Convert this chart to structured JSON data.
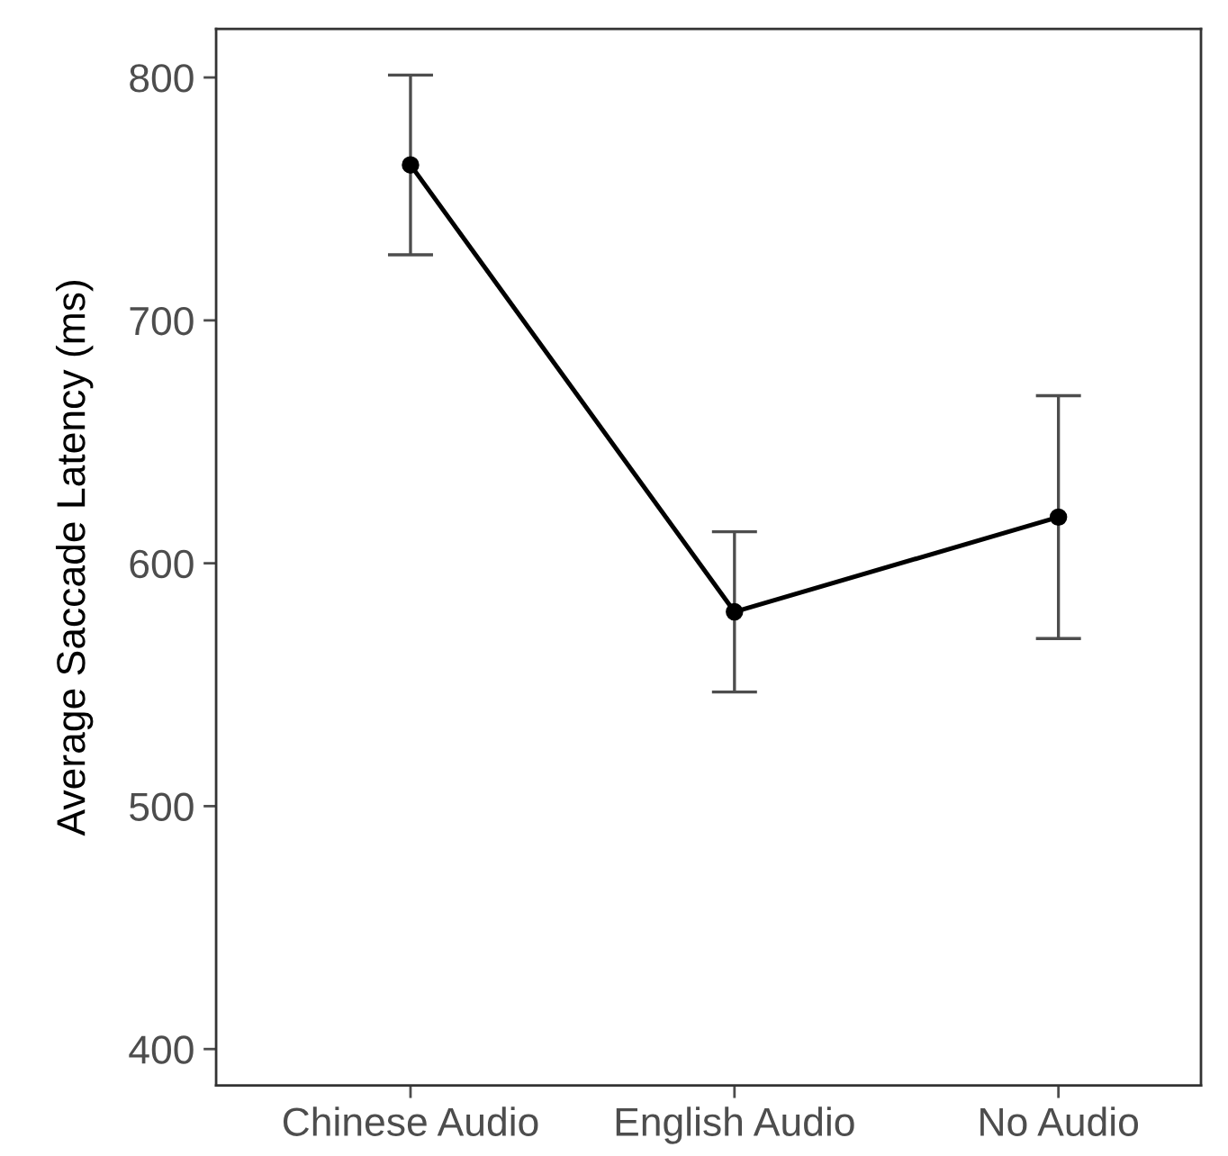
{
  "chart_data": {
    "type": "line",
    "ylabel": "Average Saccade Latency (ms)",
    "categories": [
      "Chinese Audio",
      "English Audio",
      "No Audio"
    ],
    "series": [
      {
        "color": "#000000",
        "values": [
          764,
          580,
          619
        ],
        "errors": [
          37,
          33,
          50
        ]
      }
    ],
    "ylim": [
      385,
      820
    ],
    "yticks": [
      400,
      500,
      600,
      700,
      800
    ],
    "grid": false,
    "legend": false,
    "marker": "circle",
    "line_style": "solid"
  }
}
